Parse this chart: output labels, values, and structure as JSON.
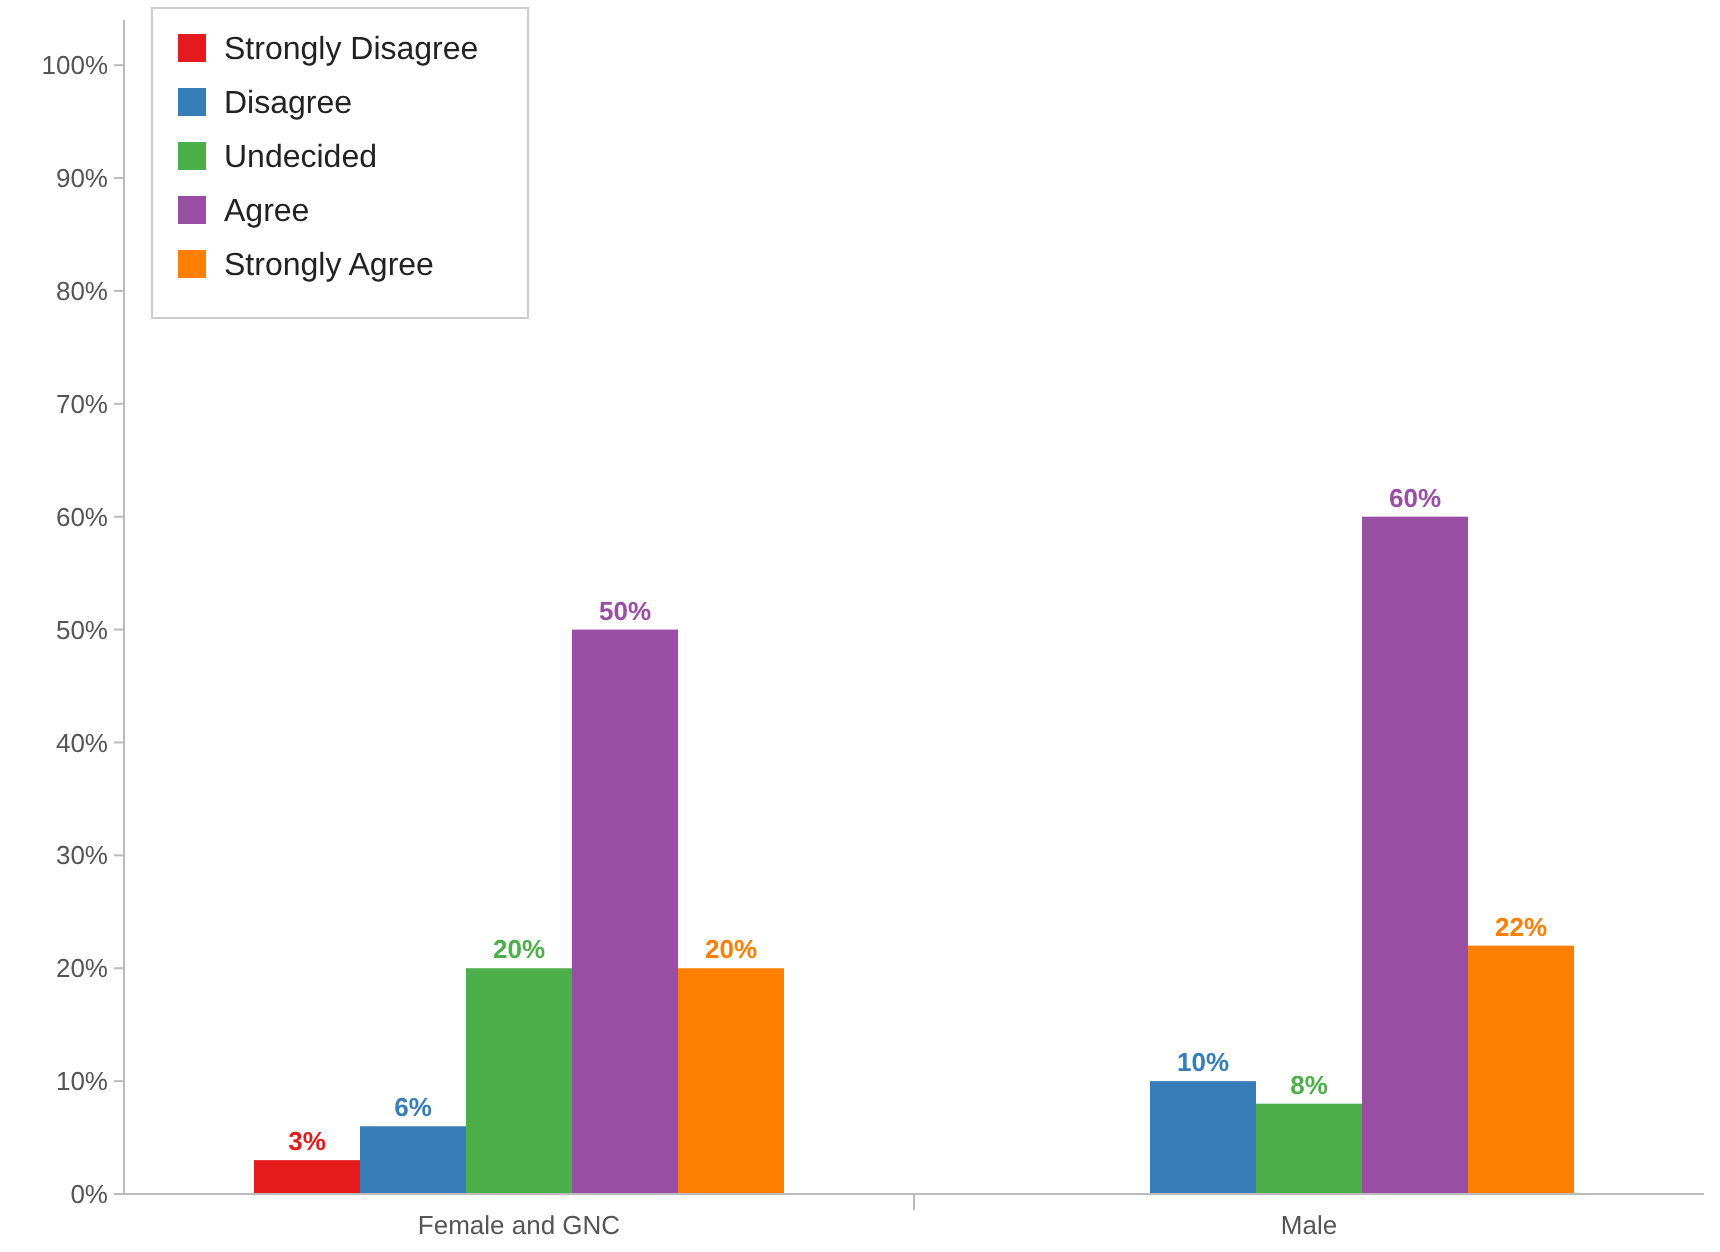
{
  "chart_data": {
    "type": "bar",
    "categories": [
      "Female and GNC",
      "Male"
    ],
    "series": [
      {
        "name": "Strongly Disagree",
        "color": "#e41a1c",
        "values": [
          3,
          null
        ],
        "value_labels": [
          "3%",
          null
        ]
      },
      {
        "name": "Disagree",
        "color": "#377eb8",
        "values": [
          6,
          10
        ],
        "value_labels": [
          "6%",
          "10%"
        ]
      },
      {
        "name": "Undecided",
        "color": "#4daf4a",
        "values": [
          20,
          8
        ],
        "value_labels": [
          "20%",
          "8%"
        ]
      },
      {
        "name": "Agree",
        "color": "#984ea3",
        "values": [
          50,
          60
        ],
        "value_labels": [
          "50%",
          "60%"
        ]
      },
      {
        "name": "Strongly Agree",
        "color": "#ff7f00",
        "values": [
          20,
          22
        ],
        "value_labels": [
          "20%",
          "22%"
        ]
      }
    ],
    "ylim": [
      0,
      104
    ],
    "yticks": [
      {
        "value": 0,
        "label": "0%"
      },
      {
        "value": 10,
        "label": "10%"
      },
      {
        "value": 20,
        "label": "20%"
      },
      {
        "value": 30,
        "label": "30%"
      },
      {
        "value": 40,
        "label": "40%"
      },
      {
        "value": 50,
        "label": "50%"
      },
      {
        "value": 60,
        "label": "60%"
      },
      {
        "value": 70,
        "label": "70%"
      },
      {
        "value": 80,
        "label": "80%"
      },
      {
        "value": 90,
        "label": "90%"
      },
      {
        "value": 100,
        "label": "100%"
      }
    ],
    "grid": false,
    "legend": "top left"
  }
}
